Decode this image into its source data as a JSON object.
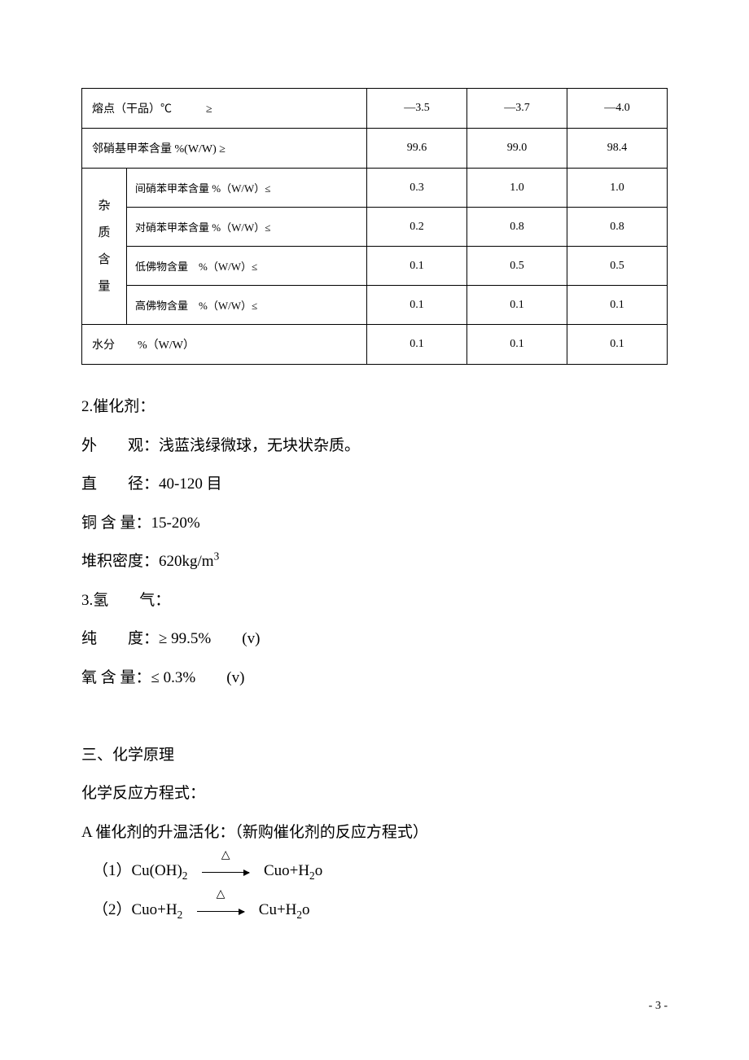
{
  "table": {
    "rows": [
      {
        "label": "熔点（干品）℃　　　≥",
        "v1": "—3.5",
        "v2": "—3.7",
        "v3": "—4.0"
      },
      {
        "label": "邻硝基甲苯含量  %(W/W) ≥",
        "v1": "99.6",
        "v2": "99.0",
        "v3": "98.4"
      }
    ],
    "impurity_group_label": "杂\n质\n含\n量",
    "impurity_rows": [
      {
        "label": "间硝苯甲苯含量 %（W/W）≤",
        "v1": "0.3",
        "v2": "1.0",
        "v3": "1.0"
      },
      {
        "label": "对硝苯甲苯含量 %（W/W）≤",
        "v1": "0.2",
        "v2": "0.8",
        "v3": "0.8"
      },
      {
        "label": "低佛物含量　%（W/W）≤",
        "v1": "0.1",
        "v2": "0.5",
        "v3": "0.5"
      },
      {
        "label": "高佛物含量　%（W/W）≤",
        "v1": "0.1",
        "v2": "0.1",
        "v3": "0.1"
      }
    ],
    "last_row": {
      "label": "水分　　%（W/W）",
      "v1": "0.1",
      "v2": "0.1",
      "v3": "0.1"
    }
  },
  "body": {
    "l1": "2.催化剂：",
    "l2": "外　　观：浅蓝浅绿微球，无块状杂质。",
    "l3": "直　　径：40-120 目",
    "l4": "铜 含 量：15-20%",
    "l5_pre": "堆积密度：620kg/m",
    "l5_sup": "3",
    "l6": "3.氢　　气：",
    "l7": "纯　　度：≥ 99.5%　　(v)",
    "l8": "氧 含 量：≤  0.3%　　(v)",
    "l9": "三、化学原理",
    "l10": "化学反应方程式：",
    "l11": "A  催化剂的升温活化：（新购催化剂的反应方程式）",
    "eq1_lhs_a": "（1）Cu(OH)",
    "eq1_lhs_sub": "2",
    "eq1_rhs_a": "Cuo+H",
    "eq1_rhs_sub": "2",
    "eq1_rhs_b": "o",
    "eq2_lhs_a": "（2）Cuo+H",
    "eq2_lhs_sub": "2",
    "eq2_rhs_a": "Cu+H",
    "eq2_rhs_sub": "2",
    "eq2_rhs_b": "o",
    "delta": "△"
  },
  "page": "- 3 -"
}
